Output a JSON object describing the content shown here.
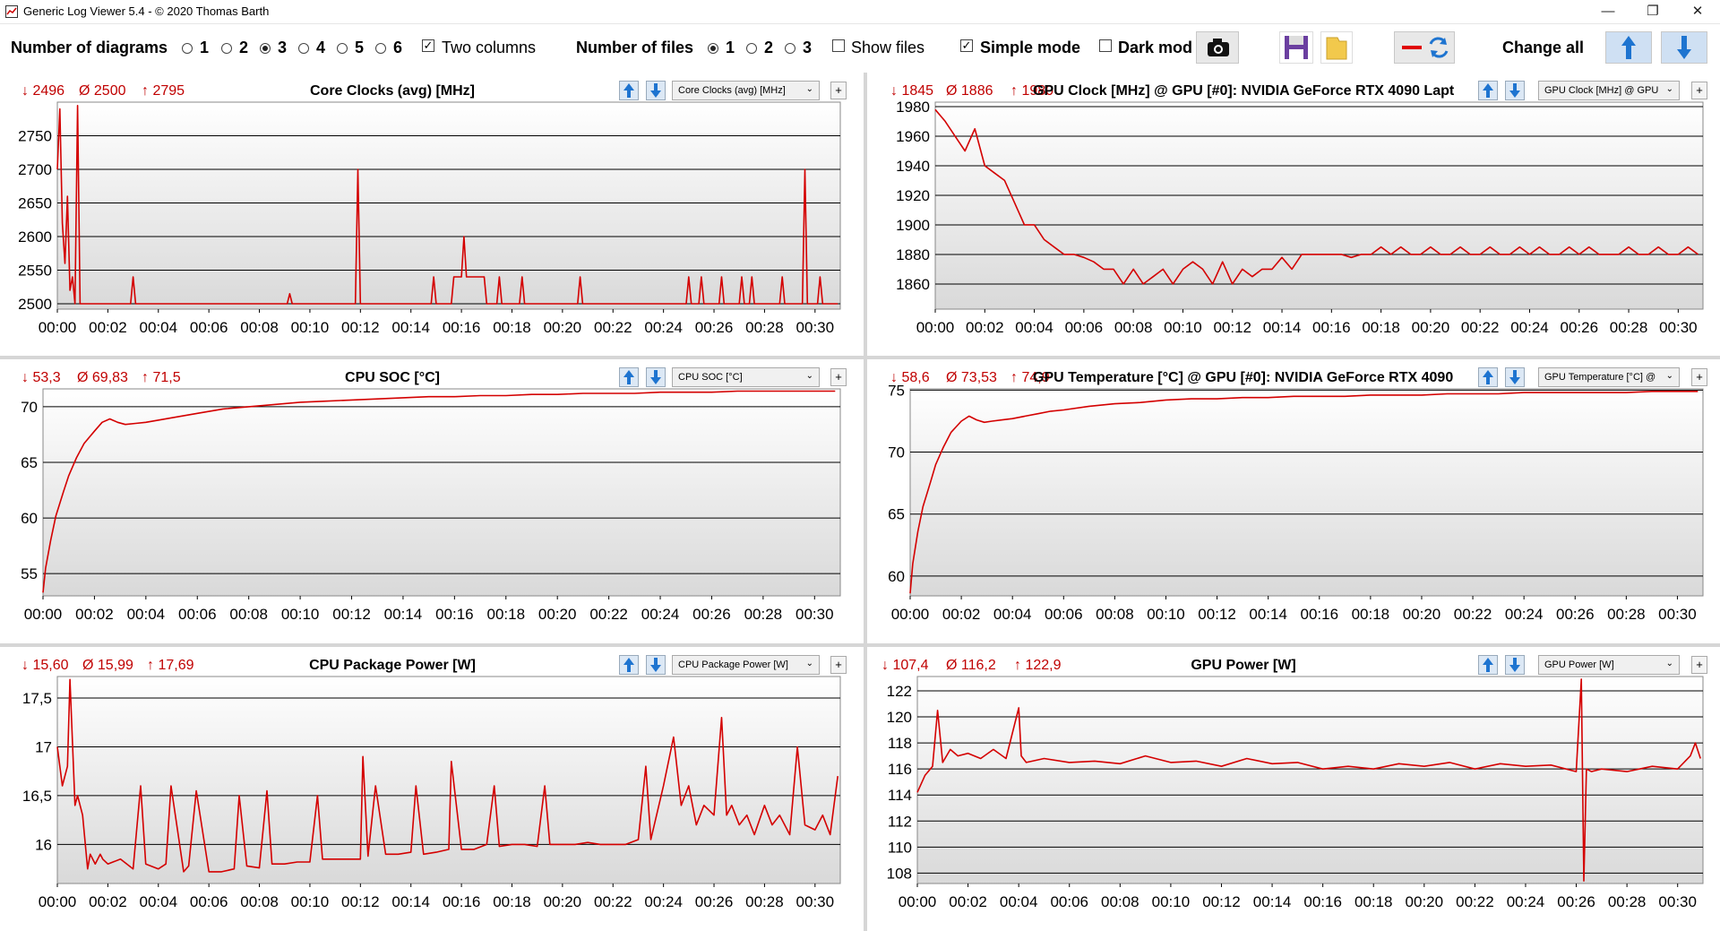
{
  "window": {
    "title": "Generic Log Viewer 5.4 - © 2020 Thomas Barth",
    "minimize": "—",
    "restore": "❐",
    "close": "✕"
  },
  "toolbar": {
    "num_diagrams_label": "Number of diagrams",
    "diagram_options": [
      "1",
      "2",
      "3",
      "4",
      "5",
      "6"
    ],
    "diagram_selected": "3",
    "two_columns_label": "Two columns",
    "two_columns_checked": true,
    "num_files_label": "Number of files",
    "file_options": [
      "1",
      "2",
      "3"
    ],
    "file_selected": "1",
    "show_files_label": "Show files",
    "show_files_checked": false,
    "simple_mode_label": "Simple mode",
    "simple_mode_checked": true,
    "dark_mode_label": "Dark mod",
    "dark_mode_checked": false,
    "change_all_label": "Change all",
    "icons": [
      "camera-icon",
      "save-icon",
      "folder-icon",
      "line-color-icon",
      "refresh-icon",
      "arrow-up-icon",
      "arrow-down-icon"
    ]
  },
  "colors": {
    "series": "#d40000",
    "stats": "#c00000",
    "grid": "#000000"
  },
  "x_ticks": [
    "00:00",
    "00:02",
    "00:04",
    "00:06",
    "00:08",
    "00:10",
    "00:12",
    "00:14",
    "00:16",
    "00:18",
    "00:20",
    "00:22",
    "00:24",
    "00:26",
    "00:28",
    "00:30"
  ],
  "panels": [
    {
      "min": "↓ 2496",
      "avg": "Ø 2500",
      "max": "↑ 2795",
      "title": "Core Clocks (avg) [MHz]",
      "combo": "Core Clocks (avg) [MHz]",
      "plus": "+"
    },
    {
      "min": "↓ 1845",
      "avg": "Ø 1886",
      "max": "↑ 1980",
      "title": "GPU Clock [MHz] @ GPU [#0]: NVIDIA GeForce RTX 4090 Lapt",
      "combo": "GPU Clock [MHz] @ GPU",
      "plus": "+"
    },
    {
      "min": "↓ 53,3",
      "avg": "Ø 69,83",
      "max": "↑ 71,5",
      "title": "CPU SOC [°C]",
      "combo": "CPU SOC [°C]",
      "plus": "+"
    },
    {
      "min": "↓ 58,6",
      "avg": "Ø 73,53",
      "max": "↑ 74,9",
      "title": "GPU Temperature [°C] @ GPU [#0]: NVIDIA GeForce RTX 4090 L",
      "combo": "GPU Temperature [°C] @",
      "plus": "+"
    },
    {
      "min": "↓ 15,60",
      "avg": "Ø 15,99",
      "max": "↑ 17,69",
      "title": "CPU Package Power [W]",
      "combo": "CPU Package Power [W]",
      "plus": "+"
    },
    {
      "min": "↓ 107,4",
      "avg": "Ø 116,2",
      "max": "↑ 122,9",
      "title": "GPU Power [W]",
      "combo": "GPU Power [W]",
      "plus": "+"
    }
  ],
  "chart_data": [
    {
      "type": "line",
      "title": "Core Clocks (avg) [MHz]",
      "ylim": [
        2492,
        2800
      ],
      "yticks": [
        "2500",
        "2550",
        "2600",
        "2650",
        "2700",
        "2750"
      ],
      "ytick_values": [
        2500,
        2550,
        2600,
        2650,
        2700,
        2750
      ],
      "xlim_minutes": [
        0,
        31
      ],
      "grid": true,
      "series": [
        {
          "x_minutes": [
            0,
            0.1,
            0.2,
            0.3,
            0.4,
            0.5,
            0.6,
            0.7,
            0.8,
            0.9,
            1.0,
            1.1,
            1.3,
            2.9,
            3.0,
            3.1,
            9.1,
            9.2,
            9.3,
            11.8,
            11.9,
            12.0,
            14.8,
            14.9,
            15.0,
            15.6,
            15.7,
            16.0,
            16.1,
            16.2,
            16.3,
            16.9,
            17.0,
            17.4,
            17.5,
            17.6,
            18.3,
            18.4,
            18.5,
            20.6,
            20.7,
            20.8,
            24.9,
            25.0,
            25.1,
            25.4,
            25.5,
            25.6,
            26.2,
            26.3,
            26.4,
            27.0,
            27.1,
            27.2,
            27.4,
            27.5,
            27.6,
            28.6,
            28.7,
            28.8,
            29.5,
            29.6,
            29.7,
            30.1,
            30.2,
            30.3,
            30.8,
            30.9
          ],
          "y": [
            2700,
            2790,
            2620,
            2560,
            2660,
            2520,
            2540,
            2500,
            2795,
            2500,
            2500,
            2500,
            2500,
            2500,
            2540,
            2500,
            2500,
            2515,
            2500,
            2500,
            2700,
            2500,
            2500,
            2540,
            2500,
            2500,
            2540,
            2540,
            2600,
            2540,
            2540,
            2540,
            2500,
            2500,
            2540,
            2500,
            2500,
            2540,
            2500,
            2500,
            2540,
            2500,
            2500,
            2540,
            2500,
            2500,
            2540,
            2500,
            2500,
            2540,
            2500,
            2500,
            2540,
            2500,
            2500,
            2540,
            2500,
            2500,
            2540,
            2500,
            2500,
            2700,
            2500,
            2500,
            2540,
            2500,
            2500,
            2500
          ]
        }
      ]
    },
    {
      "type": "line",
      "title": "GPU Clock [MHz] @ GPU [#0]: NVIDIA GeForce RTX 4090 Lapt",
      "ylim": [
        1843,
        1983
      ],
      "yticks": [
        "1860",
        "1880",
        "1900",
        "1920",
        "1940",
        "1960",
        "1980"
      ],
      "ytick_values": [
        1860,
        1880,
        1900,
        1920,
        1940,
        1960,
        1980
      ],
      "xlim_minutes": [
        0,
        31
      ],
      "grid": true,
      "series": [
        {
          "x_minutes": [
            0,
            0.4,
            0.8,
            1.2,
            1.6,
            2.0,
            2.4,
            2.8,
            3.2,
            3.6,
            4.0,
            4.4,
            4.8,
            5.2,
            5.6,
            6.0,
            6.4,
            6.8,
            7.2,
            7.6,
            8.0,
            8.4,
            8.8,
            9.2,
            9.6,
            10.0,
            10.4,
            10.8,
            11.2,
            11.6,
            12.0,
            12.4,
            12.8,
            13.2,
            13.6,
            14.0,
            14.4,
            14.8,
            15.2,
            15.6,
            16.0,
            16.4,
            16.8,
            17.2,
            17.6,
            18.0,
            18.4,
            18.8,
            19.2,
            19.6,
            20.0,
            20.4,
            20.8,
            21.2,
            21.6,
            22.0,
            22.4,
            22.8,
            23.2,
            23.6,
            24.0,
            24.4,
            24.8,
            25.2,
            25.6,
            26.0,
            26.4,
            26.8,
            27.2,
            27.6,
            28.0,
            28.4,
            28.8,
            29.2,
            29.6,
            30.0,
            30.4,
            30.8
          ],
          "y": [
            1978,
            1970,
            1960,
            1950,
            1965,
            1940,
            1935,
            1930,
            1915,
            1900,
            1900,
            1890,
            1885,
            1880,
            1880,
            1878,
            1875,
            1870,
            1870,
            1860,
            1870,
            1860,
            1865,
            1870,
            1860,
            1870,
            1875,
            1870,
            1860,
            1875,
            1860,
            1870,
            1865,
            1870,
            1870,
            1878,
            1870,
            1880,
            1880,
            1880,
            1880,
            1880,
            1878,
            1880,
            1880,
            1885,
            1880,
            1885,
            1880,
            1880,
            1885,
            1880,
            1880,
            1885,
            1880,
            1880,
            1885,
            1880,
            1880,
            1885,
            1880,
            1885,
            1880,
            1880,
            1885,
            1880,
            1885,
            1880,
            1880,
            1880,
            1885,
            1880,
            1880,
            1885,
            1880,
            1880,
            1885,
            1880
          ]
        }
      ]
    },
    {
      "type": "line",
      "title": "CPU SOC [°C]",
      "ylim": [
        53.0,
        71.6
      ],
      "yticks": [
        "55",
        "60",
        "65",
        "70"
      ],
      "ytick_values": [
        55,
        60,
        65,
        70
      ],
      "xlim_minutes": [
        0,
        31
      ],
      "grid": true,
      "series": [
        {
          "x_minutes": [
            0,
            0.1,
            0.3,
            0.5,
            0.8,
            1.0,
            1.3,
            1.6,
            2.0,
            2.3,
            2.6,
            2.9,
            3.2,
            3.6,
            4.0,
            4.5,
            5.0,
            5.5,
            6.0,
            7.0,
            8.0,
            9.0,
            10.0,
            11.0,
            12.0,
            13.0,
            14.0,
            15.0,
            16.0,
            17.0,
            18.0,
            19.0,
            20.0,
            21.0,
            22.0,
            23.0,
            24.0,
            25.0,
            26.0,
            27.0,
            28.0,
            29.0,
            30.0,
            30.8
          ],
          "y": [
            53.3,
            55.5,
            58.0,
            60.2,
            62.4,
            63.8,
            65.4,
            66.7,
            67.8,
            68.6,
            68.9,
            68.6,
            68.4,
            68.5,
            68.6,
            68.8,
            69.0,
            69.2,
            69.4,
            69.8,
            70.0,
            70.2,
            70.4,
            70.5,
            70.6,
            70.7,
            70.8,
            70.9,
            70.9,
            71.0,
            71.0,
            71.1,
            71.1,
            71.2,
            71.2,
            71.2,
            71.3,
            71.3,
            71.3,
            71.4,
            71.4,
            71.4,
            71.4,
            71.4
          ]
        }
      ]
    },
    {
      "type": "line",
      "title": "GPU Temperature [°C] @ GPU [#0]: NVIDIA GeForce RTX 4090 L",
      "ylim": [
        58.4,
        75.1
      ],
      "yticks": [
        "60",
        "65",
        "70",
        "75"
      ],
      "ytick_values": [
        60,
        65,
        70,
        75
      ],
      "xlim_minutes": [
        0,
        31
      ],
      "grid": true,
      "series": [
        {
          "x_minutes": [
            0,
            0.1,
            0.3,
            0.5,
            0.8,
            1.0,
            1.3,
            1.6,
            2.0,
            2.3,
            2.6,
            2.9,
            3.2,
            3.6,
            4.0,
            4.5,
            5.0,
            5.5,
            6.0,
            7.0,
            8.0,
            9.0,
            10.0,
            11.0,
            12.0,
            13.0,
            14.0,
            15.0,
            16.0,
            17.0,
            18.0,
            19.0,
            20.0,
            21.0,
            22.0,
            23.0,
            24.0,
            25.0,
            26.0,
            27.0,
            28.0,
            29.0,
            30.0,
            30.8
          ],
          "y": [
            58.6,
            61.0,
            63.6,
            65.6,
            67.6,
            69.0,
            70.4,
            71.6,
            72.5,
            72.9,
            72.6,
            72.4,
            72.5,
            72.6,
            72.7,
            72.9,
            73.1,
            73.3,
            73.4,
            73.7,
            73.9,
            74.0,
            74.2,
            74.3,
            74.3,
            74.4,
            74.4,
            74.5,
            74.5,
            74.5,
            74.6,
            74.6,
            74.6,
            74.7,
            74.7,
            74.7,
            74.8,
            74.8,
            74.8,
            74.8,
            74.8,
            74.9,
            74.9,
            74.9
          ]
        }
      ]
    },
    {
      "type": "line",
      "title": "CPU Package Power [W]",
      "ylim": [
        15.6,
        17.72
      ],
      "yticks": [
        "16",
        "16,5",
        "17",
        "17,5"
      ],
      "ytick_values": [
        16,
        16.5,
        17,
        17.5
      ],
      "xlim_minutes": [
        0,
        31
      ],
      "grid": true,
      "series": [
        {
          "x_minutes": [
            0,
            0.2,
            0.4,
            0.5,
            0.7,
            0.8,
            1.0,
            1.2,
            1.3,
            1.5,
            1.7,
            1.8,
            2.0,
            2.5,
            3.0,
            3.3,
            3.5,
            4.0,
            4.3,
            4.5,
            5.0,
            5.2,
            5.5,
            6.0,
            6.5,
            7.0,
            7.2,
            7.5,
            8.0,
            8.3,
            8.5,
            9.0,
            9.5,
            10.0,
            10.3,
            10.5,
            11.0,
            11.5,
            12.0,
            12.1,
            12.3,
            12.6,
            13.0,
            13.5,
            14.0,
            14.2,
            14.5,
            15.0,
            15.5,
            15.6,
            16.0,
            16.5,
            17.0,
            17.3,
            17.5,
            18.0,
            18.5,
            19.0,
            19.3,
            19.5,
            20.0,
            20.5,
            21.0,
            21.5,
            22.0,
            22.5,
            23.0,
            23.3,
            23.5,
            24.0,
            24.4,
            24.7,
            25.0,
            25.3,
            25.6,
            26.0,
            26.3,
            26.5,
            26.7,
            27.0,
            27.3,
            27.6,
            28.0,
            28.3,
            28.6,
            29.0,
            29.3,
            29.6,
            30.0,
            30.3,
            30.6,
            30.9
          ],
          "y": [
            17.0,
            16.6,
            16.8,
            17.69,
            16.4,
            16.5,
            16.3,
            15.75,
            15.9,
            15.8,
            15.9,
            15.85,
            15.8,
            15.85,
            15.75,
            16.6,
            15.8,
            15.75,
            15.8,
            16.6,
            15.72,
            15.78,
            16.55,
            15.72,
            15.72,
            15.75,
            16.5,
            15.78,
            15.76,
            16.55,
            15.8,
            15.8,
            15.82,
            15.82,
            16.5,
            15.85,
            15.85,
            15.85,
            15.85,
            16.9,
            15.88,
            16.6,
            15.9,
            15.9,
            15.92,
            16.6,
            15.9,
            15.92,
            15.95,
            16.85,
            15.95,
            15.95,
            16.0,
            16.6,
            15.98,
            16.0,
            16.0,
            15.98,
            16.6,
            16.0,
            16.0,
            16.0,
            16.02,
            16.0,
            16.0,
            16.0,
            16.05,
            16.8,
            16.05,
            16.6,
            17.1,
            16.4,
            16.6,
            16.2,
            16.4,
            16.3,
            17.3,
            16.3,
            16.4,
            16.2,
            16.3,
            16.1,
            16.4,
            16.2,
            16.3,
            16.1,
            17.0,
            16.2,
            16.15,
            16.3,
            16.1,
            16.7
          ]
        }
      ]
    },
    {
      "type": "line",
      "title": "GPU Power [W]",
      "ylim": [
        107.2,
        123.1
      ],
      "yticks": [
        "108",
        "110",
        "112",
        "114",
        "116",
        "118",
        "120",
        "122"
      ],
      "ytick_values": [
        108,
        110,
        112,
        114,
        116,
        118,
        120,
        122
      ],
      "xlim_minutes": [
        0,
        31
      ],
      "grid": true,
      "series": [
        {
          "x_minutes": [
            0,
            0.3,
            0.6,
            0.8,
            1.0,
            1.3,
            1.6,
            2.0,
            2.5,
            3.0,
            3.5,
            4.0,
            4.1,
            4.3,
            5.0,
            6.0,
            7.0,
            8.0,
            9.0,
            10.0,
            11.0,
            12.0,
            13.0,
            14.0,
            15.0,
            16.0,
            17.0,
            18.0,
            19.0,
            20.0,
            21.0,
            22.0,
            23.0,
            24.0,
            25.0,
            26.0,
            26.2,
            26.3,
            26.4,
            26.6,
            27.0,
            28.0,
            29.0,
            30.0,
            30.5,
            30.7,
            30.9
          ],
          "y": [
            114.2,
            115.5,
            116.2,
            120.5,
            116.5,
            117.5,
            117.0,
            117.2,
            116.8,
            117.5,
            116.8,
            120.7,
            117.0,
            116.5,
            116.8,
            116.5,
            116.6,
            116.4,
            117.0,
            116.5,
            116.6,
            116.2,
            116.8,
            116.4,
            116.5,
            116.0,
            116.2,
            116.0,
            116.4,
            116.2,
            116.5,
            116.0,
            116.4,
            116.2,
            116.3,
            115.8,
            122.9,
            107.4,
            116.0,
            115.8,
            116.0,
            115.8,
            116.2,
            116.0,
            117.0,
            118.0,
            116.8
          ]
        }
      ]
    }
  ]
}
